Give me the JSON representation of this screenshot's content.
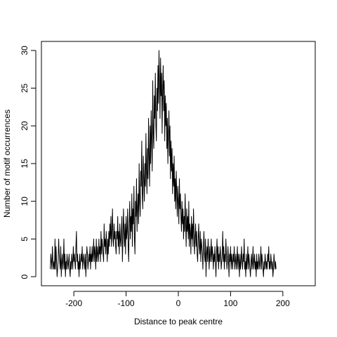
{
  "chart_data": {
    "type": "line",
    "xlabel": "Distance to peak centre",
    "ylabel": "Number of motif occurrences",
    "xlim": [
      -262,
      262
    ],
    "ylim": [
      -1.2,
      31.2
    ],
    "x_ticks": [
      -200,
      -100,
      0,
      100,
      200
    ],
    "y_ticks": [
      0,
      5,
      10,
      15,
      20,
      25,
      30
    ],
    "x_tick_labels": [
      "-200",
      "-100",
      "0",
      "100",
      "200"
    ],
    "y_tick_labels": [
      "0",
      "5",
      "10",
      "15",
      "20",
      "25",
      "30"
    ],
    "grid": false,
    "line_color": "#000000",
    "series": [
      {
        "x_start": -245,
        "x_step": 1,
        "values": [
          1,
          3,
          2,
          1,
          4,
          2,
          1,
          2,
          1,
          5,
          1,
          4,
          2,
          0,
          1,
          2,
          5,
          3,
          2,
          1,
          4,
          0,
          2,
          3,
          1,
          2,
          5,
          1,
          3,
          0,
          2,
          1,
          3,
          2,
          1,
          2,
          3,
          1,
          0,
          2,
          1,
          3,
          2,
          1,
          4,
          2,
          3,
          2,
          1,
          4,
          6,
          2,
          3,
          1,
          2,
          0,
          3,
          1,
          2,
          3,
          2,
          4,
          1,
          2,
          3,
          2,
          1,
          3,
          0,
          2,
          4,
          3,
          1,
          2,
          3,
          2,
          4,
          1,
          3,
          2,
          4,
          2,
          3,
          5,
          2,
          4,
          3,
          1,
          5,
          2,
          4,
          3,
          2,
          5,
          3,
          4,
          2,
          6,
          3,
          5,
          4,
          3,
          2,
          7,
          4,
          5,
          3,
          6,
          4,
          2,
          5,
          3,
          6,
          4,
          7,
          5,
          8,
          4,
          6,
          9,
          5,
          4,
          7,
          5,
          6,
          4,
          3,
          6,
          5,
          8,
          4,
          6,
          3,
          7,
          5,
          4,
          6,
          8,
          2,
          5,
          9,
          6,
          4,
          7,
          3,
          8,
          5,
          6,
          9,
          4,
          2,
          7,
          10,
          5,
          8,
          6,
          11,
          4,
          9,
          7,
          12,
          5,
          3,
          10,
          8,
          13,
          6,
          9,
          11,
          7,
          15,
          10,
          8,
          14,
          12,
          18,
          11,
          9,
          16,
          13,
          10,
          15,
          12,
          19,
          14,
          11,
          17,
          13,
          21,
          16,
          12,
          20,
          15,
          22,
          18,
          14,
          26,
          19,
          17,
          24,
          21,
          27,
          20,
          18,
          25,
          22,
          28,
          23,
          30,
          26,
          21,
          29,
          24,
          27,
          19,
          25,
          28,
          22,
          26,
          18,
          24,
          20,
          23,
          17,
          21,
          15,
          19,
          22,
          16,
          20,
          13,
          18,
          14,
          17,
          11,
          15,
          12,
          16,
          10,
          13,
          9,
          14,
          11,
          8,
          12,
          10,
          7,
          13,
          9,
          11,
          8,
          6,
          10,
          7,
          9,
          5,
          8,
          6,
          11,
          7,
          4,
          9,
          6,
          8,
          5,
          10,
          4,
          7,
          6,
          3,
          8,
          5,
          7,
          4,
          9,
          6,
          3,
          5,
          7,
          4,
          6,
          3,
          2,
          5,
          7,
          4,
          3,
          6,
          2,
          5,
          4,
          3,
          1,
          4,
          6,
          3,
          2,
          5,
          0,
          3,
          4,
          2,
          5,
          3,
          1,
          4,
          2,
          3,
          5,
          2,
          4,
          3,
          1,
          3,
          2,
          4,
          2,
          0,
          3,
          5,
          2,
          4,
          1,
          3,
          2,
          4,
          3,
          1,
          2,
          3,
          6,
          2,
          4,
          1,
          3,
          2,
          5,
          3,
          1,
          2,
          4,
          2,
          0,
          3,
          2,
          4,
          1,
          3,
          2,
          1,
          3,
          2,
          4,
          1,
          2,
          3,
          1,
          2,
          4,
          1,
          3,
          2,
          0,
          3,
          1,
          2,
          4,
          2,
          1,
          3,
          2,
          5,
          1,
          2,
          0,
          3,
          1,
          2,
          4,
          1,
          3,
          2,
          1,
          0,
          2,
          3,
          1,
          2,
          4,
          1,
          2,
          3,
          1,
          2,
          0,
          3,
          1,
          2,
          1,
          3,
          2,
          1,
          2,
          4,
          1,
          3,
          2,
          1,
          0,
          2,
          1,
          3,
          2,
          1,
          2,
          1,
          3,
          2,
          4,
          1,
          2,
          1,
          3,
          2,
          1,
          2,
          0,
          1,
          3,
          2,
          1,
          2,
          1
        ]
      }
    ]
  }
}
